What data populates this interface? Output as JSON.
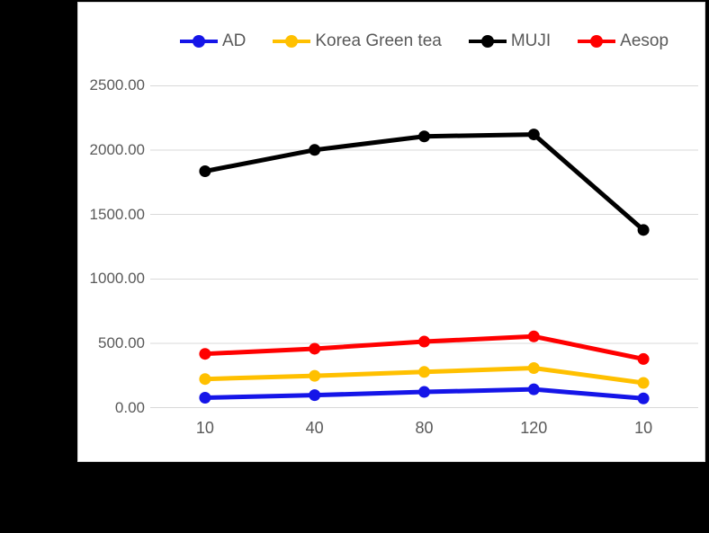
{
  "chart_data": {
    "type": "line",
    "title": "",
    "xlabel": "",
    "ylabel": "",
    "categories": [
      "10",
      "40",
      "80",
      "120",
      "10"
    ],
    "series": [
      {
        "name": "AD",
        "color": "#1515e8",
        "values": [
          80,
          100,
          125,
          145,
          75
        ]
      },
      {
        "name": "Korea Green tea",
        "color": "#ffc000",
        "values": [
          225,
          250,
          280,
          310,
          195
        ]
      },
      {
        "name": "MUJI",
        "color": "#000000",
        "values": [
          1835,
          2000,
          2105,
          2120,
          1380
        ]
      },
      {
        "name": "Aesop",
        "color": "#ff0000",
        "values": [
          420,
          460,
          515,
          555,
          380
        ]
      }
    ],
    "ylim": [
      0,
      2500
    ],
    "y_ticks": [
      "0.00",
      "500.00",
      "1000.00",
      "1500.00",
      "2000.00",
      "2500.00"
    ],
    "y_tick_values": [
      0,
      500,
      1000,
      1500,
      2000,
      2500
    ],
    "grid": true,
    "legend_position": "top"
  },
  "style": {
    "canvas_bg": "#000000",
    "panel_bg": "#ffffff",
    "panel_border": "#d9d9d9",
    "gridline_color": "#d9d9d9",
    "tick_label_color": "#595959",
    "line_width": 5,
    "marker_radius": 6.5
  }
}
